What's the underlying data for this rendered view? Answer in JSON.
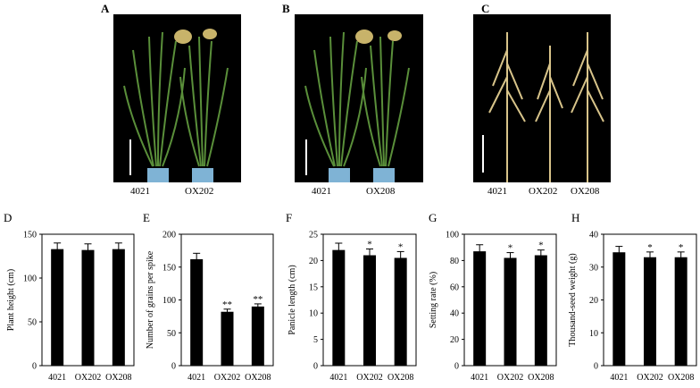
{
  "photos": [
    {
      "letter": "A",
      "labels": [
        "4021",
        "OX202"
      ]
    },
    {
      "letter": "B",
      "labels": [
        "4021",
        "OX208"
      ]
    },
    {
      "letter": "C",
      "labels": [
        "4021",
        "OX202",
        "OX208"
      ]
    }
  ],
  "chart_data": [
    {
      "type": "bar",
      "letter": "D",
      "ylabel": "Plant height (cm)",
      "ylim": [
        0,
        150
      ],
      "yticks": [
        0,
        50,
        100,
        150
      ],
      "categories": [
        "4021",
        "OX202",
        "OX208"
      ],
      "values": [
        133,
        132,
        133
      ],
      "errors": [
        7,
        7,
        7
      ],
      "annotations": [
        "",
        "",
        ""
      ]
    },
    {
      "type": "bar",
      "letter": "E",
      "ylabel": "Number of grains per spike",
      "ylim": [
        0,
        200
      ],
      "yticks": [
        0,
        50,
        100,
        150,
        200
      ],
      "categories": [
        "4021",
        "OX202",
        "OX208"
      ],
      "values": [
        162,
        82,
        90
      ],
      "errors": [
        9,
        4,
        4
      ],
      "annotations": [
        "",
        "**",
        "**"
      ]
    },
    {
      "type": "bar",
      "letter": "F",
      "ylabel": "Panicle length (cm)",
      "ylim": [
        0,
        25
      ],
      "yticks": [
        0,
        5,
        10,
        15,
        20,
        25
      ],
      "categories": [
        "4021",
        "OX202",
        "OX208"
      ],
      "values": [
        22,
        21,
        20.5
      ],
      "errors": [
        1.3,
        1.2,
        1.2
      ],
      "annotations": [
        "",
        "*",
        "*"
      ]
    },
    {
      "type": "bar",
      "letter": "G",
      "ylabel": "Setting rate (%)",
      "ylim": [
        0,
        100
      ],
      "yticks": [
        0,
        20,
        40,
        60,
        80,
        100
      ],
      "categories": [
        "4021",
        "OX202",
        "OX208"
      ],
      "values": [
        87,
        82,
        84
      ],
      "errors": [
        5,
        4,
        4
      ],
      "annotations": [
        "",
        "*",
        "*"
      ]
    },
    {
      "type": "bar",
      "letter": "H",
      "ylabel": "Thousand-seed weight (g)",
      "ylim": [
        0,
        40
      ],
      "yticks": [
        0,
        10,
        20,
        30,
        40
      ],
      "categories": [
        "4021",
        "OX202",
        "OX208"
      ],
      "values": [
        34.5,
        33,
        33
      ],
      "errors": [
        1.8,
        1.6,
        1.6
      ],
      "annotations": [
        "",
        "*",
        "*"
      ]
    }
  ]
}
